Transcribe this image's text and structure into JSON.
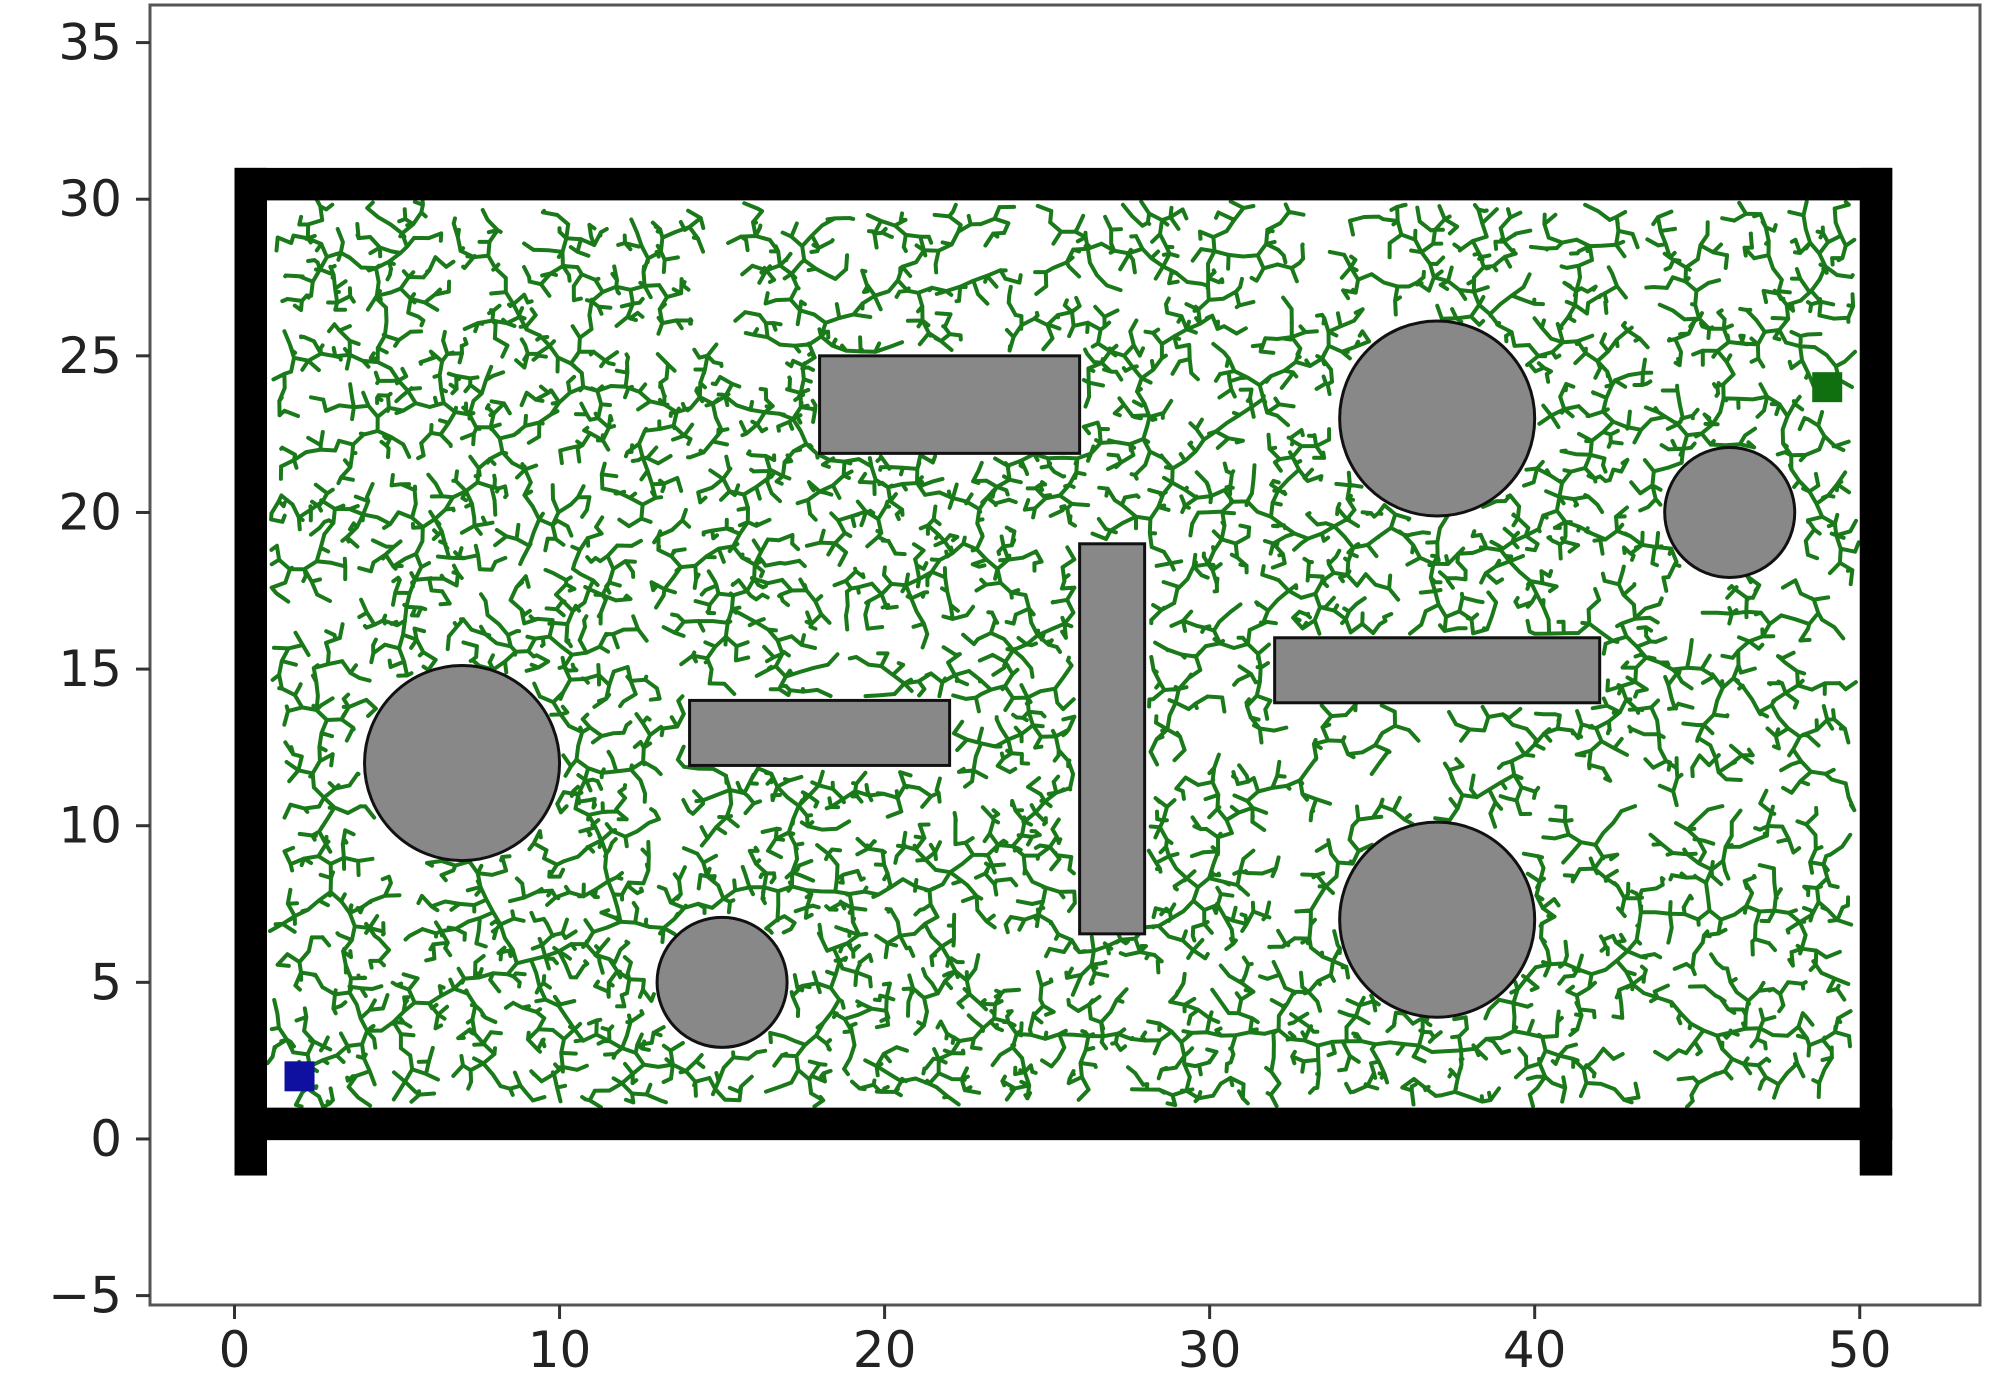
{
  "chart_data": {
    "type": "scatter",
    "title": "",
    "xlabel": "",
    "ylabel": "",
    "xlim": [
      -2.6,
      53.7
    ],
    "ylim": [
      -5.3,
      36.2
    ],
    "grid": false,
    "legend": "none",
    "x_ticks": [
      0,
      10,
      20,
      30,
      40,
      50
    ],
    "x_tick_labels": [
      "0",
      "10",
      "20",
      "30",
      "40",
      "50"
    ],
    "y_ticks": [
      -5,
      0,
      5,
      10,
      15,
      20,
      25,
      30,
      35
    ],
    "y_tick_labels": [
      "−5",
      "0",
      "5",
      "10",
      "15",
      "20",
      "25",
      "30",
      "35"
    ],
    "boundary": {
      "x": [
        0,
        51
      ],
      "y": [
        0,
        31
      ],
      "thickness": 1
    },
    "obstacles": {
      "circles": [
        {
          "cx": 7,
          "cy": 12,
          "r": 3
        },
        {
          "cx": 15,
          "cy": 5,
          "r": 2
        },
        {
          "cx": 37,
          "cy": 23,
          "r": 3
        },
        {
          "cx": 37,
          "cy": 7,
          "r": 3
        },
        {
          "cx": 46,
          "cy": 20,
          "r": 2
        }
      ],
      "rectangles": [
        {
          "x0": 18,
          "y0": 22,
          "x1": 26,
          "y1": 25
        },
        {
          "x0": 14,
          "y0": 12,
          "x1": 22,
          "y1": 14
        },
        {
          "x0": 26,
          "y0": 7,
          "x1": 28,
          "y1": 19
        },
        {
          "x0": 32,
          "y0": 14,
          "x1": 42,
          "y1": 16
        }
      ]
    },
    "start": {
      "x": 2,
      "y": 2
    },
    "goal": {
      "x": 49,
      "y": 24
    },
    "tree_nodes": 7000,
    "colors": {
      "tree": "#1a7a1a",
      "obstacle_fill": "#888888",
      "obstacle_edge": "#111111",
      "wall": "#000000",
      "start": "#1010a0",
      "goal": "#107010"
    }
  }
}
